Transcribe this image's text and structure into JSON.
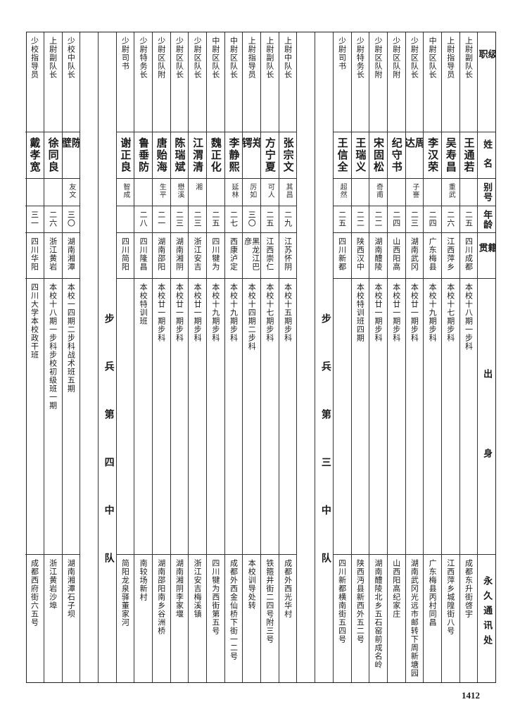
{
  "header": {
    "rank": "级职",
    "name": "姓名",
    "alias": "别号",
    "age": "年龄",
    "native": "籍贯",
    "origin": "出身",
    "address": "永久通讯处"
  },
  "sections": [
    {
      "title": "",
      "rows": [
        {
          "rank": "上尉副队长",
          "name": "王通若",
          "alias": "",
          "age": "二五",
          "native": "四川成都",
          "origin": "本校十八期一步科",
          "address": "成都东升街啓宇"
        },
        {
          "rank": "上尉指导员",
          "name": "吴寿昌",
          "alias": "重武",
          "age": "二六",
          "native": "江西萍乡",
          "origin": "本校十七期步科",
          "address": "江西萍乡城隍街八号"
        },
        {
          "rank": "中尉区队长",
          "name": "李汉荣",
          "alias": "",
          "age": "二四",
          "native": "广东梅县",
          "origin": "本校十九期步科",
          "address": "广东梅县丙村同昌"
        },
        {
          "rank": "少尉区队长",
          "name": "周达",
          "alias": "子謇",
          "age": "二三",
          "native": "湖南武冈",
          "origin": "本校廿一期步科",
          "address": "湖南武冈光远市邮转下周新塘园"
        },
        {
          "rank": "少尉区队附",
          "name": "纪守书",
          "alias": "",
          "age": "二四",
          "native": "山西阳高",
          "origin": "本校廿一期步科",
          "address": "山西阳高纪家庄"
        },
        {
          "rank": "少尉区队附",
          "name": "宋固松",
          "alias": "奇甫",
          "age": "二二",
          "native": "湖南醴陵",
          "origin": "本校廿一期步科",
          "address": "湖南醴陵北乡五石窑前成名岭"
        },
        {
          "rank": "少尉特务长",
          "name": "王瑞义",
          "alias": "",
          "age": "二二",
          "native": "陕西汉中",
          "origin": "本校特训班四期",
          "address": "陕西沔县新西外五二号"
        },
        {
          "rank": "少尉司书",
          "name": "王信全",
          "alias": "超然",
          "age": "二五",
          "native": "四川新都",
          "origin": "",
          "address": "四川新都横南街五四号"
        }
      ]
    },
    {
      "title": "步兵第三中队",
      "rows": [
        {
          "rank": "上尉中队长",
          "name": "张宗文",
          "alias": "其昌",
          "age": "二九",
          "native": "江苏怀阴",
          "origin": "本校十五期步科",
          "address": "成都外西光华村"
        },
        {
          "rank": "上尉副队长",
          "name": "方宁夏",
          "alias": "可人",
          "age": "二五",
          "native": "江西崇仁",
          "origin": "本校十七期步科",
          "address": "铁箍井街二四号附三号"
        },
        {
          "rank": "上尉指导员",
          "name": "郑锷",
          "alias": "厉如",
          "age": "三〇",
          "native": "黑龙江巴彦",
          "origin": "本校十四期二步科",
          "address": "本校训导处转"
        },
        {
          "rank": "中尉区队长",
          "name": "李静熙",
          "alias": "延林",
          "age": "二七",
          "native": "西康泸定",
          "origin": "本校十九期步科",
          "address": "成都外西金仙桥下街一二号"
        },
        {
          "rank": "中尉区队长",
          "name": "魏正化",
          "alias": "",
          "age": "二五",
          "native": "四川犍为",
          "origin": "本校十九期步科",
          "address": "四川犍为西街第五号"
        },
        {
          "rank": "少尉区队长",
          "name": "江渭清",
          "alias": "湘",
          "age": "二三",
          "native": "浙江安吉",
          "origin": "本校廿一期步科",
          "address": "浙江安吉梅溪镇"
        },
        {
          "rank": "少尉区队长",
          "name": "陈瑞斌",
          "alias": "懋溪",
          "age": "二三",
          "native": "湖南湘阴",
          "origin": "本校廿一期步科",
          "address": "湖南湘阴李家堰"
        },
        {
          "rank": "少尉区队附",
          "name": "唐贻海",
          "alias": "生平",
          "age": "二一",
          "native": "湖南邵阳",
          "origin": "本校廿一期步科",
          "address": "湖南邵阳南乡谷洲桥"
        },
        {
          "rank": "少尉特务长",
          "name": "鲁垂防",
          "alias": "",
          "age": "二八",
          "native": "四川隆昌",
          "origin": "本校特训班",
          "address": "南较场新村"
        },
        {
          "rank": "少尉司书",
          "name": "谢正良",
          "alias": "智成",
          "age": "",
          "native": "四川简阳",
          "origin": "",
          "address": "简阳龙泉驿董家河"
        }
      ]
    },
    {
      "title": "步兵第四中队",
      "rows": [
        {
          "rank": "少校中队长",
          "name": "陈壁",
          "alias": "友文",
          "age": "三〇",
          "native": "湖南湘潭",
          "origin": "本校一四期二步科战术班五期",
          "address": "湖南湘潭石子坝"
        },
        {
          "rank": "上尉副队长",
          "name": "徐同良",
          "alias": "",
          "age": "二六",
          "native": "浙江黄岩",
          "origin": "本校十八期一步科步校初级班一期",
          "address": "浙江黄岩沙埠"
        },
        {
          "rank": "少校指导员",
          "name": "戴孝宽",
          "alias": "",
          "age": "三一",
          "native": "四川华阳",
          "origin": "四川大学本校政干班",
          "address": "成都西府街六五号"
        }
      ]
    }
  ],
  "page_number": "1412"
}
